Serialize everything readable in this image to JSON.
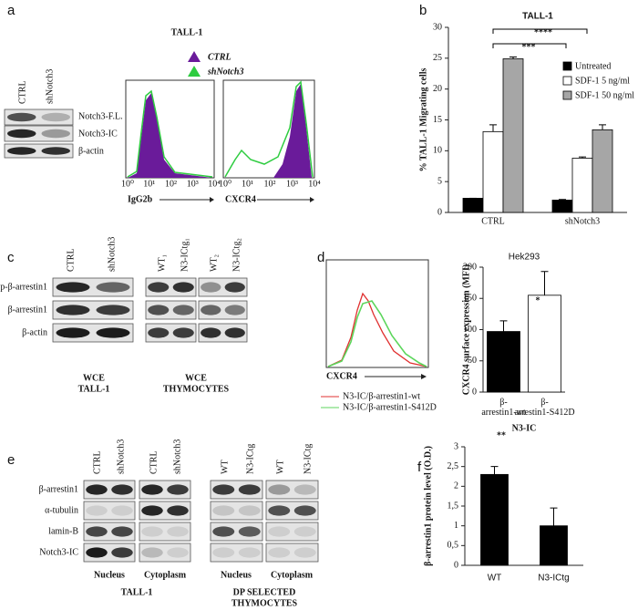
{
  "panels": {
    "a": {
      "letter": "a",
      "title": "TALL-1",
      "lanes": [
        "CTRL",
        "shNotch3"
      ],
      "rows": [
        "Notch3-F.L.",
        "Notch3-IC",
        "β-actin"
      ],
      "legend": [
        "CTRL",
        "shNotch3"
      ],
      "hist_xlabels": [
        "IgG2b",
        "CXCR4"
      ],
      "hist_ticks": [
        "10⁰",
        "10¹",
        "10²",
        "10³",
        "10⁴"
      ]
    },
    "b": {
      "letter": "b"
    },
    "c": {
      "letter": "c",
      "lanes": [
        "CTRL",
        "shNotch3",
        "WT₁",
        "N3-ICtg₁",
        "WT₂",
        "N3-ICtg₂"
      ],
      "rows": [
        "p-β-arrestin1",
        "β-arrestin1",
        "β-actin"
      ],
      "captions": [
        [
          "WCE",
          "TALL-1"
        ],
        [
          "WCE",
          "THYMOCYTES"
        ]
      ]
    },
    "d": {
      "letter": "d",
      "hist_xlabel": "CXCR4",
      "legend": [
        "N3-IC/β-arrestin1-wt",
        "N3-IC/β-arrestin1-S412D"
      ]
    },
    "e": {
      "letter": "e",
      "lanes": [
        "CTRL",
        "shNotch3",
        "CTRL",
        "shNotch3",
        "WT",
        "N3-ICtg",
        "WT",
        "N3-ICtg"
      ],
      "rows": [
        "β-arrestin1",
        "α-tubulin",
        "lamin-B",
        "Notch3-IC"
      ],
      "fractions": [
        "Nucleus",
        "Cytoplasm",
        "Nucleus",
        "Cytoplasm"
      ],
      "captions": [
        [
          "TALL-1"
        ],
        [
          "DP SELECTED",
          "THYMOCYTES"
        ]
      ]
    },
    "f": {
      "letter": "f"
    }
  },
  "chart_data": [
    {
      "type": "bar",
      "title": "TALL-1",
      "y_label": "% TALL-1 Migrating cells",
      "categories": [
        "CTRL",
        "shNotch3"
      ],
      "series": [
        {
          "name": "Untreated",
          "color": "#000000",
          "values": [
            2.3,
            2.0
          ],
          "errors": [
            0,
            0.1
          ]
        },
        {
          "name": "SDF-1 5 ng/ml",
          "color": "#ffffff",
          "values": [
            13.1,
            8.8
          ],
          "errors": [
            1.1,
            0.2
          ]
        },
        {
          "name": "SDF-1 50 ng/ml",
          "color": "#a6a6a6",
          "values": [
            24.9,
            13.4
          ],
          "errors": [
            0.3,
            0.8
          ]
        }
      ],
      "ylim": [
        0,
        30
      ],
      "yticks": [
        0,
        5,
        10,
        15,
        20,
        25,
        30
      ],
      "annotations": [
        "***",
        "****"
      ],
      "legend": "upper right"
    },
    {
      "type": "bar",
      "title": "Hek293",
      "y_label": "CXCR4 surface expression (MFI)",
      "x_label": "N3-IC",
      "categories": [
        "β-arrestin1-wt",
        "β-arrestin1-S412D"
      ],
      "values": [
        97,
        155
      ],
      "errors": [
        17,
        38
      ],
      "colors": [
        "#000000",
        "#ffffff"
      ],
      "ylim": [
        0,
        200
      ],
      "yticks": [
        0,
        50,
        100,
        150,
        200
      ],
      "annotations": [
        "*"
      ]
    },
    {
      "type": "bar",
      "y_label": "β-arrestin1 protein level (O.D.)",
      "categories": [
        "WT",
        "N3-ICtg"
      ],
      "values": [
        2.3,
        1.0
      ],
      "errors": [
        0.2,
        0.45
      ],
      "color": "#000000",
      "ylim": [
        0,
        3
      ],
      "yticks": [
        0,
        {
          "value": 0.5,
          "label": "0,5"
        },
        1,
        {
          "value": 1.5,
          "label": "1,5"
        },
        2,
        {
          "value": 2.5,
          "label": "2,5"
        },
        3
      ],
      "annotations": [
        "**"
      ]
    }
  ]
}
